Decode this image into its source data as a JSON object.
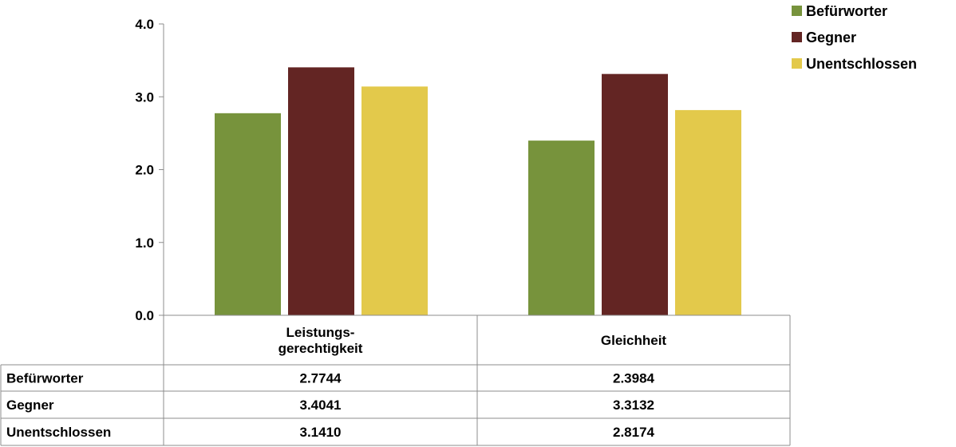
{
  "chart_data": {
    "type": "bar",
    "categories": [
      "Leistungs-\ngerechtigkeit",
      "Gleichheit"
    ],
    "series": [
      {
        "name": "Befürworter",
        "values": [
          "2.7744",
          "2.3984"
        ],
        "color": "#77933C"
      },
      {
        "name": "Gegner",
        "values": [
          "3.4041",
          "3.3132"
        ],
        "color": "#632523"
      },
      {
        "name": "Unentschlossen",
        "values": [
          "3.1410",
          "2.8174"
        ],
        "color": "#E3C94B"
      }
    ],
    "yticks": [
      "0.0",
      "1.0",
      "2.0",
      "3.0",
      "4.0"
    ],
    "ylim": [
      0,
      4
    ],
    "legend": "top-right",
    "data_table": true,
    "grid": false
  }
}
